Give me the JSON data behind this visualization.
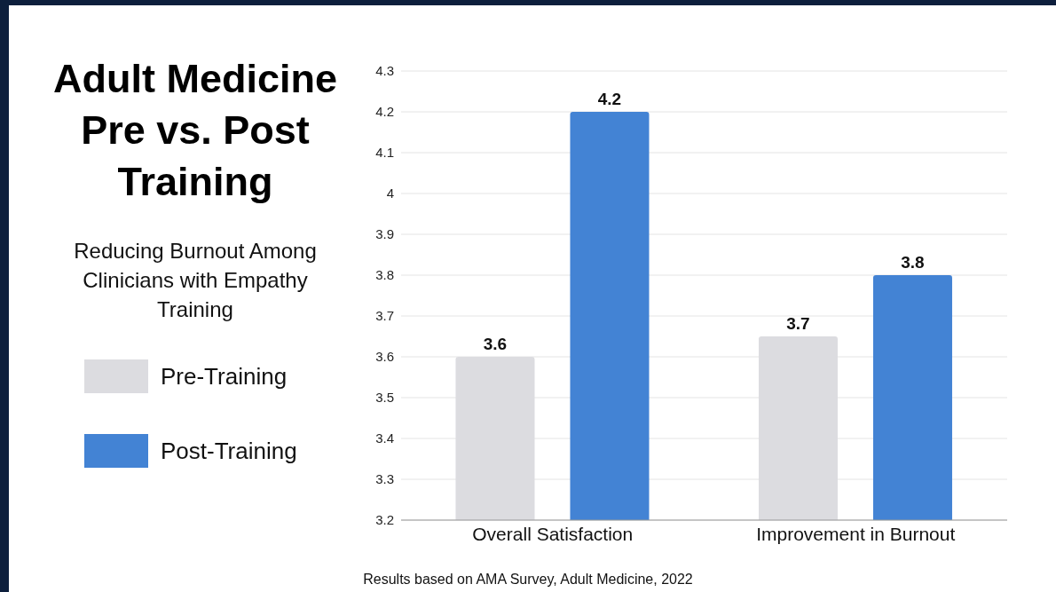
{
  "chart_data": {
    "type": "bar",
    "title": "Adult Medicine Pre vs. Post Training",
    "subtitle": "Reducing Burnout Among Clinicians with Empathy Training",
    "categories": [
      "Overall Satisfaction",
      "Improvement in Burnout"
    ],
    "series": [
      {
        "name": "Pre-Training",
        "color": "#dcdce0",
        "values": [
          3.6,
          3.65
        ],
        "value_labels": [
          "3.6",
          "3.7"
        ]
      },
      {
        "name": "Post-Training",
        "color": "#4383d4",
        "values": [
          4.2,
          3.8
        ],
        "value_labels": [
          "4.2",
          "3.8"
        ]
      }
    ],
    "ylim": [
      3.2,
      4.3
    ],
    "yticks": [
      3.2,
      3.3,
      3.4,
      3.5,
      3.6,
      3.7,
      3.8,
      3.9,
      4,
      4.1,
      4.2,
      4.3
    ],
    "grid": "y",
    "legend": "left",
    "annotations": [
      "Results based on AMA Survey, Adult Medicine, 2022"
    ]
  }
}
